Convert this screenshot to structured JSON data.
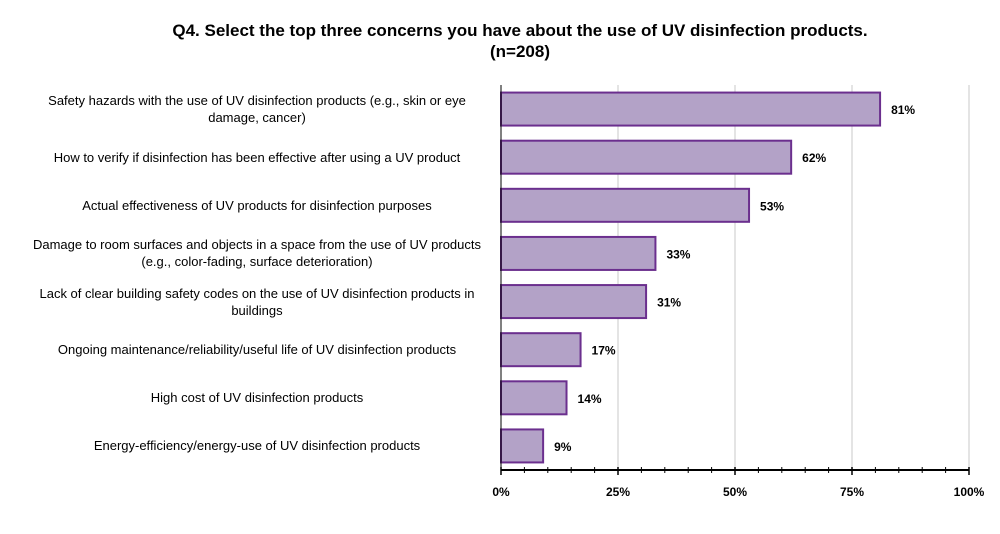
{
  "chart_data": {
    "type": "bar",
    "orientation": "horizontal",
    "title": "Q4. Select the top three concerns you have about the use of UV disinfection products.",
    "subtitle": "(n=208)",
    "categories": [
      "Safety hazards with the use of UV disinfection products (e.g., skin or eye damage, cancer)",
      "How to verify if disinfection has been effective after using a UV product",
      "Actual effectiveness of UV products for disinfection purposes",
      "Damage to room surfaces and objects in a space from the use of UV products (e.g., color-fading, surface deterioration)",
      "Lack of clear building safety codes on the use of UV disinfection products in buildings",
      "Ongoing maintenance/reliability/useful life of UV disinfection products",
      "High cost of UV disinfection products",
      "Energy-efficiency/energy-use of UV disinfection products"
    ],
    "values": [
      81,
      62,
      53,
      33,
      31,
      17,
      14,
      9
    ],
    "value_labels": [
      "81%",
      "62%",
      "53%",
      "33%",
      "31%",
      "17%",
      "14%",
      "9%"
    ],
    "xlim": [
      0,
      100
    ],
    "xticks": [
      "0%",
      "25%",
      "50%",
      "75%",
      "100%"
    ],
    "xlabel": "",
    "ylabel": "",
    "grid": "vertical",
    "bar_color": "#b3a2c7",
    "bar_edge_color": "#6b2f8e"
  }
}
